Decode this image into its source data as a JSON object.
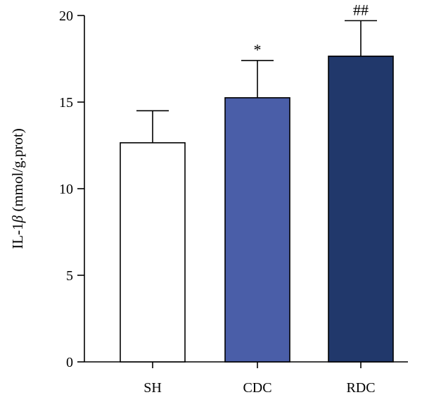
{
  "chart_data": {
    "type": "bar",
    "categories": [
      "SH",
      "CDC",
      "RDC"
    ],
    "values": [
      12.65,
      15.25,
      17.65
    ],
    "errors": [
      1.85,
      2.15,
      2.05
    ],
    "annotations": [
      "",
      "*",
      "##"
    ],
    "colors": [
      "#ffffff",
      "#4a5ea8",
      "#21386b"
    ],
    "ylabel_prefix": "IL-1",
    "ylabel_symbol": "β",
    "ylabel_suffix": " (mmol/g.prot)",
    "ylim": [
      0,
      20
    ],
    "yticks": [
      0,
      5,
      10,
      15,
      20
    ],
    "grid": false,
    "legend": "none"
  }
}
